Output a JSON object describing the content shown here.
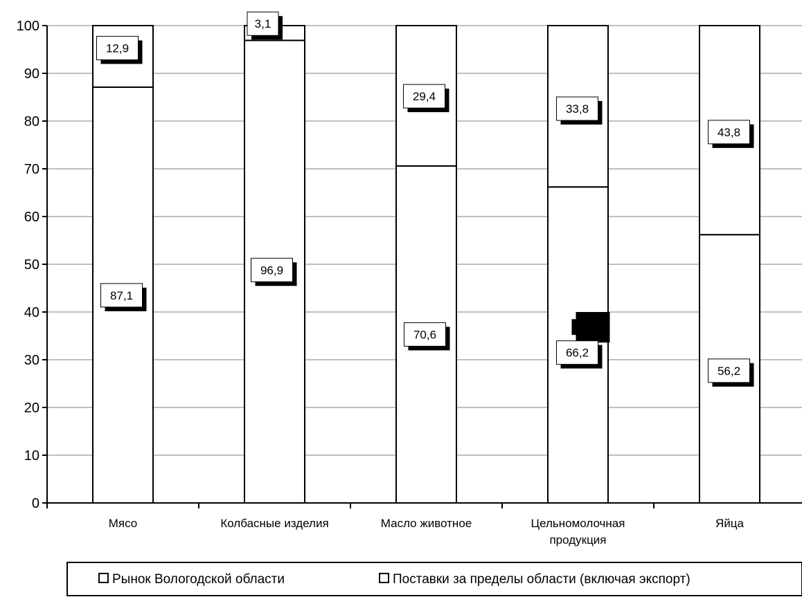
{
  "chart_data": {
    "type": "bar",
    "stacked": true,
    "categories": [
      [
        "Мясо"
      ],
      [
        "Колбасные изделия"
      ],
      [
        "Масло животное"
      ],
      [
        "Цельномолочная",
        "продукция"
      ],
      [
        "Яйца"
      ]
    ],
    "series": [
      {
        "name": "Рынок Вологодской области",
        "values": [
          87.1,
          96.9,
          70.6,
          66.2,
          56.2
        ],
        "labels": [
          "87,1",
          "96,9",
          "70,6",
          "66,2",
          "56,2"
        ]
      },
      {
        "name": "Поставки за пределы области (включая экспорт)",
        "values": [
          12.9,
          3.1,
          29.4,
          33.8,
          43.8
        ],
        "labels": [
          "12,9",
          "3,1",
          "29,4",
          "33,8",
          "43,8"
        ]
      }
    ],
    "ylim": [
      0,
      100
    ],
    "yticks": [
      0,
      10,
      20,
      30,
      40,
      50,
      60,
      70,
      80,
      90,
      100
    ],
    "grid": true,
    "legend": "bottom",
    "colors": {
      "bar_fill": "#ffffff",
      "stroke": "#000000",
      "grid": "#808080"
    }
  }
}
